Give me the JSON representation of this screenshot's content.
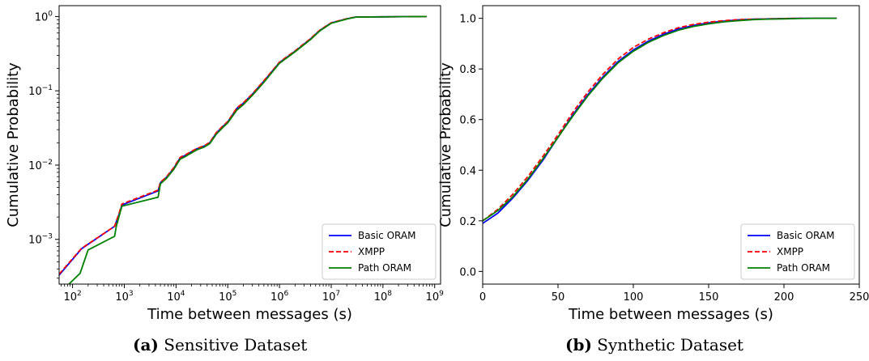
{
  "chart_data": [
    {
      "type": "line",
      "caption_label": "(a)",
      "caption_text": "Sensitive Dataset",
      "xlabel": "Time between messages (s)",
      "ylabel": "Cumulative Probability",
      "xscale": "log",
      "yscale": "log",
      "xlim": [
        55,
        1300000000
      ],
      "ylim": [
        0.00025,
        1.4
      ],
      "xticks": [
        {
          "value": 100,
          "base": "10",
          "exp": "2"
        },
        {
          "value": 1000,
          "base": "10",
          "exp": "3"
        },
        {
          "value": 10000,
          "base": "10",
          "exp": "4"
        },
        {
          "value": 100000,
          "base": "10",
          "exp": "5"
        },
        {
          "value": 1000000,
          "base": "10",
          "exp": "6"
        },
        {
          "value": 10000000,
          "base": "10",
          "exp": "7"
        },
        {
          "value": 100000000,
          "base": "10",
          "exp": "8"
        },
        {
          "value": 1000000000,
          "base": "10",
          "exp": "9"
        }
      ],
      "yticks": [
        {
          "value": 0.001,
          "base": "10",
          "exp": "−3"
        },
        {
          "value": 0.01,
          "base": "10",
          "exp": "−2"
        },
        {
          "value": 0.1,
          "base": "10",
          "exp": "−1"
        },
        {
          "value": 1,
          "base": "10",
          "exp": "0"
        }
      ],
      "legend_position": "lower-right",
      "series": [
        {
          "name": "Basic ORAM",
          "color": "#0000ff",
          "dash": "solid",
          "x": [
            55,
            150,
            650,
            800,
            900,
            4500,
            5000,
            6500,
            9000,
            12000,
            15000,
            25000,
            35000,
            45000,
            60000,
            80000,
            100000,
            150000,
            200000,
            300000,
            500000,
            1000000,
            2000000,
            4000000,
            6000000,
            10000000,
            20000000,
            30000000,
            100000000,
            700000000
          ],
          "y": [
            0.00033,
            0.00075,
            0.0015,
            0.0022,
            0.0029,
            0.0045,
            0.0058,
            0.0068,
            0.009,
            0.0125,
            0.0135,
            0.0165,
            0.018,
            0.02,
            0.027,
            0.033,
            0.038,
            0.058,
            0.068,
            0.09,
            0.135,
            0.24,
            0.34,
            0.5,
            0.65,
            0.82,
            0.93,
            0.985,
            0.99,
            1.0
          ]
        },
        {
          "name": "XMPP",
          "color": "#ff0000",
          "dash": "dashed",
          "x": [
            55,
            150,
            650,
            800,
            900,
            4500,
            5000,
            6500,
            9000,
            12000,
            15000,
            25000,
            35000,
            45000,
            60000,
            80000,
            100000,
            150000,
            200000,
            300000,
            500000,
            1000000,
            2000000,
            4000000,
            6000000,
            10000000,
            20000000,
            30000000,
            100000000,
            700000000
          ],
          "y": [
            0.00034,
            0.00076,
            0.0015,
            0.0023,
            0.003,
            0.0046,
            0.0059,
            0.0069,
            0.0092,
            0.0127,
            0.0137,
            0.0167,
            0.0182,
            0.0202,
            0.0273,
            0.0335,
            0.0385,
            0.059,
            0.069,
            0.091,
            0.137,
            0.243,
            0.345,
            0.505,
            0.655,
            0.825,
            0.935,
            0.986,
            0.99,
            1.0
          ]
        },
        {
          "name": "Path ORAM",
          "color": "#008000",
          "dash": "solid",
          "x": [
            85,
            140,
            200,
            650,
            700,
            900,
            4500,
            5000,
            6500,
            9000,
            12000,
            15000,
            25000,
            35000,
            45000,
            60000,
            80000,
            100000,
            150000,
            200000,
            300000,
            500000,
            1000000,
            2000000,
            4000000,
            6000000,
            10000000,
            20000000,
            30000000,
            100000000,
            700000000
          ],
          "y": [
            0.00025,
            0.00035,
            0.00072,
            0.0011,
            0.0015,
            0.0028,
            0.0037,
            0.0056,
            0.0066,
            0.0087,
            0.012,
            0.013,
            0.016,
            0.0175,
            0.0195,
            0.026,
            0.032,
            0.037,
            0.055,
            0.065,
            0.087,
            0.13,
            0.235,
            0.335,
            0.49,
            0.64,
            0.81,
            0.925,
            0.983,
            0.99,
            1.0
          ]
        }
      ]
    },
    {
      "type": "line",
      "caption_label": "(b)",
      "caption_text": "Synthetic Dataset",
      "xlabel": "Time between messages (s)",
      "ylabel": "Cumulative Probability",
      "xscale": "linear",
      "yscale": "linear",
      "xlim": [
        0,
        250
      ],
      "ylim": [
        -0.05,
        1.05
      ],
      "xticks": [
        {
          "value": 0,
          "label": "0"
        },
        {
          "value": 50,
          "label": "50"
        },
        {
          "value": 100,
          "label": "100"
        },
        {
          "value": 150,
          "label": "150"
        },
        {
          "value": 200,
          "label": "200"
        },
        {
          "value": 250,
          "label": "250"
        }
      ],
      "yticks": [
        {
          "value": 0,
          "label": "0.0"
        },
        {
          "value": 0.2,
          "label": "0.2"
        },
        {
          "value": 0.4,
          "label": "0.4"
        },
        {
          "value": 0.6,
          "label": "0.6"
        },
        {
          "value": 0.8,
          "label": "0.8"
        },
        {
          "value": 1.0,
          "label": "1.0"
        }
      ],
      "legend_position": "lower-right",
      "series": [
        {
          "name": "Basic ORAM",
          "color": "#0000ff",
          "dash": "solid",
          "x": [
            0,
            10,
            20,
            30,
            40,
            50,
            60,
            70,
            80,
            90,
            100,
            110,
            120,
            130,
            140,
            150,
            160,
            170,
            180,
            190,
            200,
            210,
            220,
            235
          ],
          "y": [
            0.19,
            0.23,
            0.29,
            0.36,
            0.44,
            0.53,
            0.62,
            0.7,
            0.77,
            0.83,
            0.875,
            0.91,
            0.937,
            0.958,
            0.972,
            0.982,
            0.989,
            0.994,
            0.997,
            0.998,
            0.999,
            1.0,
            1.0,
            1.0
          ]
        },
        {
          "name": "XMPP",
          "color": "#ff0000",
          "dash": "dashed",
          "x": [
            0,
            10,
            20,
            30,
            40,
            50,
            60,
            70,
            80,
            90,
            100,
            110,
            120,
            130,
            140,
            150,
            160,
            170,
            180,
            190,
            200,
            210,
            220,
            235
          ],
          "y": [
            0.2,
            0.245,
            0.305,
            0.375,
            0.455,
            0.54,
            0.63,
            0.71,
            0.78,
            0.84,
            0.885,
            0.918,
            0.943,
            0.963,
            0.976,
            0.985,
            0.991,
            0.995,
            0.997,
            0.998,
            0.999,
            1.0,
            1.0,
            1.0
          ]
        },
        {
          "name": "Path ORAM",
          "color": "#008000",
          "dash": "solid",
          "x": [
            0,
            10,
            20,
            30,
            40,
            50,
            60,
            70,
            80,
            90,
            100,
            110,
            120,
            130,
            140,
            150,
            160,
            170,
            180,
            190,
            200,
            210,
            220,
            235
          ],
          "y": [
            0.2,
            0.24,
            0.295,
            0.365,
            0.445,
            0.53,
            0.615,
            0.695,
            0.765,
            0.825,
            0.87,
            0.905,
            0.932,
            0.953,
            0.968,
            0.978,
            0.986,
            0.991,
            0.995,
            0.997,
            0.998,
            0.999,
            1.0,
            1.0
          ]
        }
      ]
    }
  ]
}
